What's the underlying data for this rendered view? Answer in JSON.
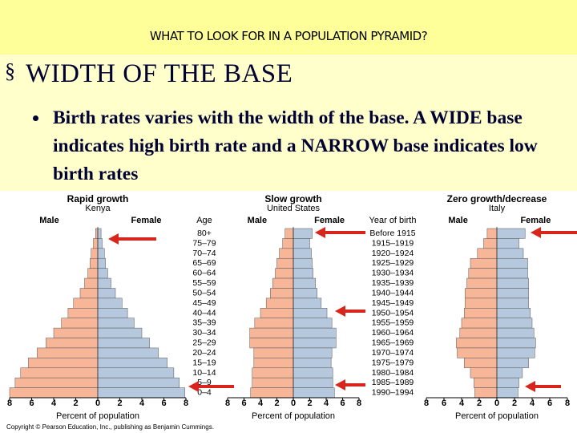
{
  "slide": {
    "title": "WHAT TO LOOK FOR IN A POPULATION PYRAMID?",
    "heading_bullet": "§",
    "heading": "WIDTH OF THE BASE",
    "bullet": "Birth rates varies with the width of the base.  A WIDE base indicates high birth rate and a NARROW base indicates low birth rates",
    "copyright": "Copyright © Pearson Education, Inc., publishing as Benjamin Cummings."
  },
  "chart_data": [
    {
      "type": "pyramid",
      "title": "Rapid growth",
      "subtitle": "Kenya",
      "category_title": "Age",
      "categories": [
        "80+",
        "75–79",
        "70–74",
        "65–69",
        "60–64",
        "55–59",
        "50–54",
        "45–49",
        "40–44",
        "35–39",
        "30–34",
        "25–29",
        "20–24",
        "15–19",
        "10–14",
        "5–9",
        "0–4"
      ],
      "series": [
        {
          "name": "Male",
          "color": "#f8b699",
          "values": [
            0.2,
            0.4,
            0.6,
            0.7,
            0.9,
            1.2,
            1.6,
            2.2,
            2.7,
            3.3,
            4.0,
            4.7,
            5.5,
            6.3,
            7.0,
            7.5,
            8.0
          ]
        },
        {
          "name": "Female",
          "color": "#b6c8dd",
          "values": [
            0.3,
            0.4,
            0.6,
            0.7,
            0.9,
            1.2,
            1.6,
            2.2,
            2.7,
            3.3,
            4.0,
            4.7,
            5.5,
            6.3,
            6.9,
            7.4,
            7.9
          ]
        }
      ],
      "xlim": [
        -8,
        8
      ],
      "xticks": [
        {
          "value": -8,
          "label": "8"
        },
        {
          "value": -6,
          "label": "6"
        },
        {
          "value": -4,
          "label": "4"
        },
        {
          "value": -2,
          "label": "2"
        },
        0,
        2,
        4,
        6,
        8
      ],
      "xlabel": "Percent of population"
    },
    {
      "type": "pyramid",
      "title": "Slow growth",
      "subtitle": "United States",
      "category_title": "Year of birth",
      "categories": [
        "Before 1915",
        "1915–1919",
        "1920–1924",
        "1925–1929",
        "1930–1934",
        "1935–1939",
        "1940–1944",
        "1945–1949",
        "1950–1954",
        "1955–1959",
        "1960–1964",
        "1965–1969",
        "1970–1974",
        "1975–1979",
        "1980–1984",
        "1985–1989",
        "1990–1994"
      ],
      "series": [
        {
          "name": "Male",
          "color": "#f8b699",
          "values": [
            1.0,
            1.3,
            1.7,
            2.0,
            2.2,
            2.5,
            2.8,
            3.3,
            4.0,
            4.7,
            5.3,
            5.3,
            4.8,
            4.8,
            5.0,
            5.0,
            5.2
          ]
        },
        {
          "name": "Female",
          "color": "#b6c8dd",
          "values": [
            2.3,
            2.0,
            2.2,
            2.3,
            2.4,
            2.7,
            2.9,
            3.4,
            4.1,
            4.7,
            5.2,
            5.2,
            4.7,
            4.6,
            4.8,
            4.8,
            5.0
          ]
        }
      ],
      "xlim": [
        -8,
        8
      ],
      "xticks": [
        {
          "value": -8,
          "label": "8"
        },
        {
          "value": -6,
          "label": "6"
        },
        {
          "value": -4,
          "label": "4"
        },
        {
          "value": -2,
          "label": "2"
        },
        0,
        2,
        4,
        6,
        8
      ],
      "xlabel": "Percent of population"
    },
    {
      "type": "pyramid",
      "title": "Zero growth/decrease",
      "subtitle": "Italy",
      "series": [
        {
          "name": "Male",
          "color": "#f8b699",
          "values": [
            1.1,
            1.5,
            2.2,
            3.0,
            3.2,
            3.4,
            3.6,
            3.6,
            3.7,
            4.0,
            4.2,
            4.6,
            4.5,
            3.7,
            3.0,
            2.6,
            2.5
          ]
        },
        {
          "name": "Female",
          "color": "#b6c8dd",
          "values": [
            3.2,
            2.5,
            3.0,
            3.5,
            3.5,
            3.6,
            3.6,
            3.6,
            3.8,
            4.0,
            4.2,
            4.4,
            4.3,
            3.6,
            2.9,
            2.5,
            2.4
          ]
        }
      ],
      "xlim": [
        -8,
        8
      ],
      "xticks": [
        {
          "value": -8,
          "label": "8"
        },
        {
          "value": -6,
          "label": "6"
        },
        {
          "value": -4,
          "label": "4"
        },
        {
          "value": -2,
          "label": "2"
        },
        0,
        2,
        4,
        6,
        8
      ],
      "xlabel": "Percent of population"
    }
  ]
}
